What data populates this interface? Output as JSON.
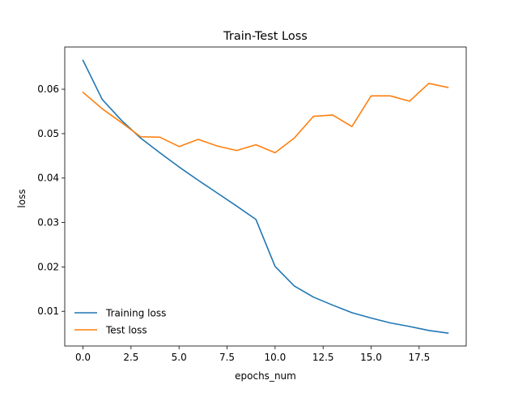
{
  "chart_data": {
    "type": "line",
    "title": "Train-Test Loss",
    "xlabel": "epochs_num",
    "ylabel": "loss",
    "xlim": [
      -0.95,
      19.95
    ],
    "ylim": [
      0.0022,
      0.0695
    ],
    "xticks": [
      0.0,
      2.5,
      5.0,
      7.5,
      10.0,
      12.5,
      15.0,
      17.5
    ],
    "xtick_labels": [
      "0.0",
      "2.5",
      "5.0",
      "7.5",
      "10.0",
      "12.5",
      "15.0",
      "17.5"
    ],
    "yticks": [
      0.01,
      0.02,
      0.03,
      0.04,
      0.05,
      0.06
    ],
    "ytick_labels": [
      "0.01",
      "0.02",
      "0.03",
      "0.04",
      "0.05",
      "0.06"
    ],
    "x": [
      0,
      1,
      2,
      3,
      4,
      5,
      6,
      7,
      8,
      9,
      10,
      11,
      12,
      13,
      14,
      15,
      16,
      17,
      18,
      19
    ],
    "series": [
      {
        "name": "Training loss",
        "color": "#1f77b4",
        "values": [
          0.0665,
          0.0577,
          0.053,
          0.049,
          0.0457,
          0.0425,
          0.0395,
          0.0366,
          0.0337,
          0.0307,
          0.0201,
          0.0157,
          0.0132,
          0.0114,
          0.0097,
          0.0085,
          0.0074,
          0.0066,
          0.0057,
          0.0051
        ]
      },
      {
        "name": "Test loss",
        "color": "#ff7f0e",
        "values": [
          0.0593,
          0.0556,
          0.0525,
          0.0493,
          0.0492,
          0.0471,
          0.0487,
          0.0472,
          0.0462,
          0.0475,
          0.0457,
          0.049,
          0.0539,
          0.0542,
          0.0516,
          0.0585,
          0.0585,
          0.0573,
          0.0613,
          0.0604
        ]
      }
    ],
    "grid": false,
    "legend_position": "lower-left"
  }
}
